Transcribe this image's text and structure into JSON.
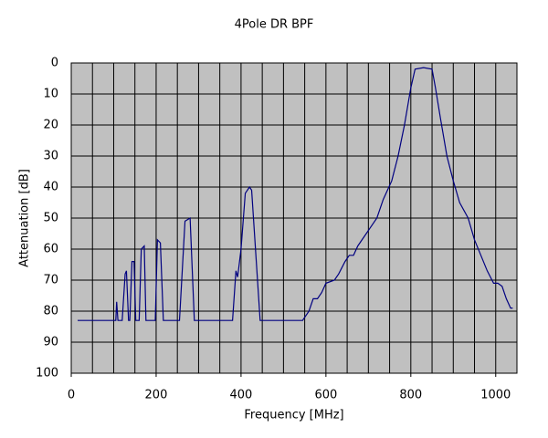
{
  "chart_data": {
    "type": "line",
    "title": "4Pole DR BPF",
    "x_label": "Frequency [MHz]",
    "y_label": "Attenuation [dB]",
    "xlim": [
      0,
      1050
    ],
    "xticks": [
      0,
      200,
      400,
      600,
      800,
      1000
    ],
    "x_gridlines": [
      0,
      50,
      100,
      150,
      200,
      250,
      300,
      350,
      400,
      450,
      500,
      550,
      600,
      650,
      700,
      750,
      800,
      850,
      900,
      950,
      1000,
      1050
    ],
    "ylim": [
      100,
      0
    ],
    "yticks": [
      0,
      10,
      20,
      30,
      40,
      50,
      60,
      70,
      80,
      90,
      100
    ],
    "grid": true,
    "background": "#c0c0c0",
    "series": [
      {
        "color": "#000080",
        "x": [
          15,
          105,
          107,
          110,
          120,
          127,
          130,
          135,
          138,
          143,
          148,
          152,
          160,
          165,
          172,
          176,
          198,
          203,
          210,
          217,
          255,
          268,
          280,
          290,
          380,
          388,
          392,
          400,
          410,
          420,
          425,
          445,
          545,
          560,
          570,
          580,
          590,
          600,
          620,
          630,
          645,
          655,
          665,
          675,
          690,
          705,
          720,
          735,
          745,
          755,
          770,
          785,
          800,
          810,
          830,
          850,
          858,
          870,
          885,
          900,
          915,
          935,
          950,
          965,
          980,
          995,
          1005,
          1015,
          1025,
          1035,
          1040
        ],
        "values": [
          83,
          83,
          77,
          83,
          83,
          68,
          67,
          83,
          83,
          64,
          64,
          83,
          83,
          60,
          59,
          83,
          83,
          57,
          58,
          83,
          83,
          51,
          50,
          83,
          83,
          67,
          69,
          60,
          42,
          40,
          41,
          83,
          83,
          80,
          76,
          76,
          74,
          71,
          70,
          68,
          64,
          62,
          62,
          59,
          56,
          53,
          50,
          44,
          41,
          38,
          30,
          20,
          8,
          2,
          1.5,
          2,
          8,
          18,
          30,
          38,
          45,
          50,
          57,
          62,
          67,
          71,
          71,
          72,
          76,
          79,
          79
        ]
      }
    ]
  }
}
